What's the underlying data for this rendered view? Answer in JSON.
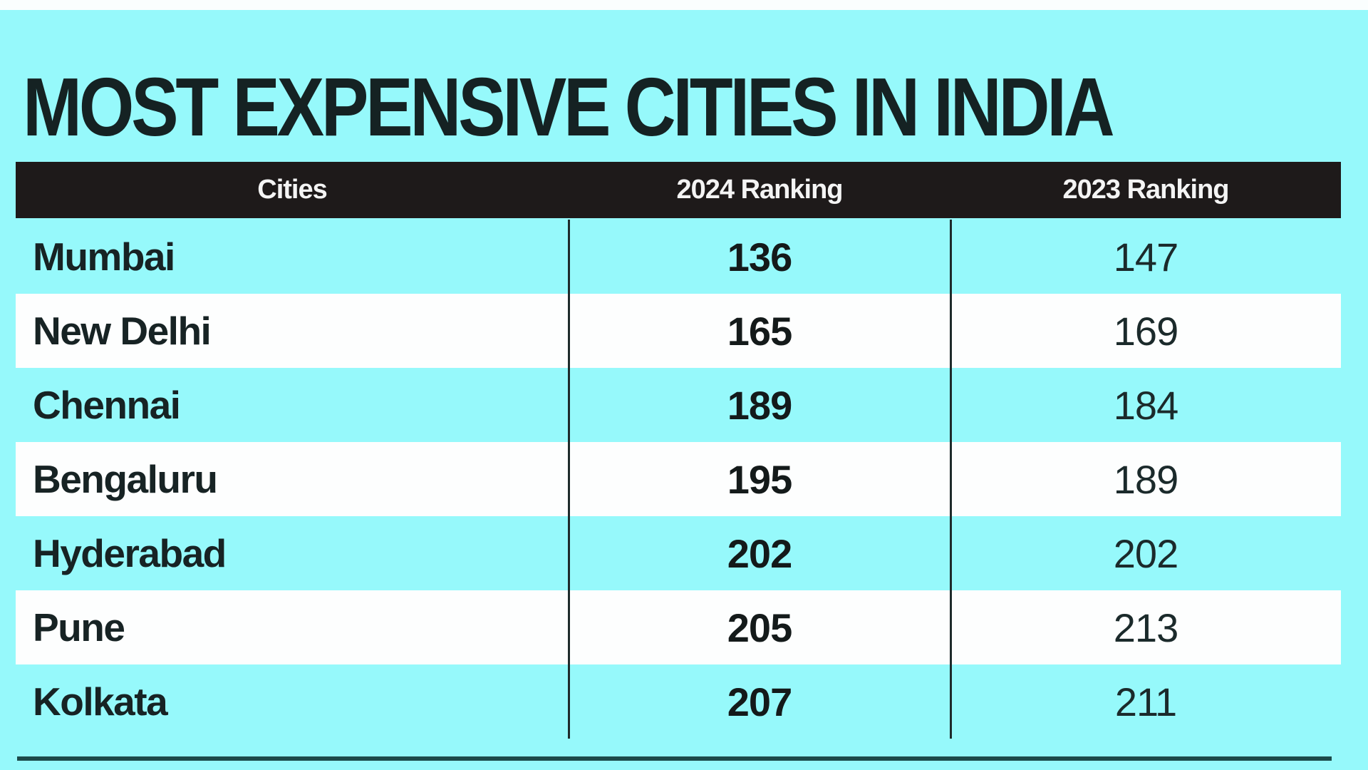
{
  "title": "MOST EXPENSIVE CITIES IN INDIA",
  "colors": {
    "background": "#96f9fb",
    "header": "#1e1a1a",
    "alt_row": "#fdfefe",
    "text": "#152223"
  },
  "table": {
    "headers": [
      "Cities",
      "2024 Ranking",
      "2023 Ranking"
    ],
    "rows": [
      {
        "city": "Mumbai",
        "rank_2024": "136",
        "rank_2023": "147"
      },
      {
        "city": "New Delhi",
        "rank_2024": "165",
        "rank_2023": "169"
      },
      {
        "city": "Chennai",
        "rank_2024": "189",
        "rank_2023": "184"
      },
      {
        "city": "Bengaluru",
        "rank_2024": "195",
        "rank_2023": "189"
      },
      {
        "city": "Hyderabad",
        "rank_2024": "202",
        "rank_2023": "202"
      },
      {
        "city": "Pune",
        "rank_2024": "205",
        "rank_2023": "213"
      },
      {
        "city": "Kolkata",
        "rank_2024": "207",
        "rank_2023": "211"
      }
    ]
  }
}
